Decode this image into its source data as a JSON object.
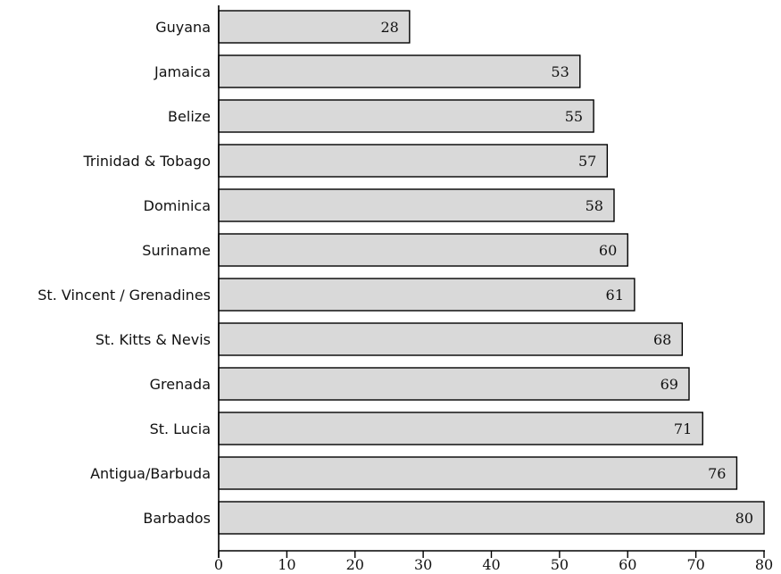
{
  "chart_data": {
    "type": "bar",
    "orientation": "horizontal",
    "categories": [
      "Guyana",
      "Jamaica",
      "Belize",
      "Trinidad & Tobago",
      "Dominica",
      "Suriname",
      "St. Vincent / Grenadines",
      "St. Kitts & Nevis",
      "Grenada",
      "St. Lucia",
      "Antigua/Barbuda",
      "Barbados"
    ],
    "values": [
      28,
      53,
      55,
      57,
      58,
      60,
      61,
      68,
      69,
      71,
      76,
      80
    ],
    "data_labels": [
      "28",
      "53",
      "55",
      "57",
      "58",
      "60",
      "61",
      "68",
      "69",
      "71",
      "76",
      "80"
    ],
    "xlim": [
      0,
      80
    ],
    "xticks": [
      0,
      10,
      20,
      30,
      40,
      50,
      60,
      70,
      80
    ],
    "xtick_labels": [
      "0",
      "10",
      "20",
      "30",
      "40",
      "50",
      "60",
      "70",
      "80"
    ],
    "title": "",
    "xlabel": "",
    "ylabel": "",
    "grid": false,
    "bar_color": "#d9d9d9",
    "bar_edge_color": "#000000"
  }
}
